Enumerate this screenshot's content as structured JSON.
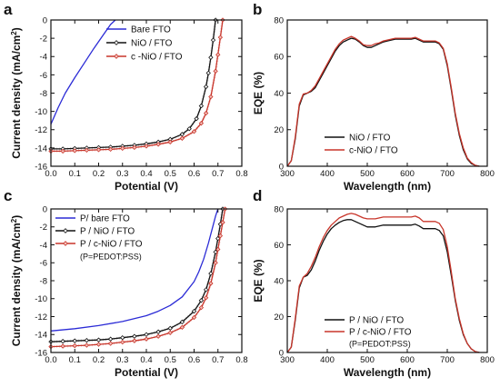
{
  "colors": {
    "black": "#111111",
    "blue": "#2b2bd6",
    "red": "#c8352a",
    "pink_dot": "#e08a8a"
  },
  "chart_data": [
    {
      "panel": "a",
      "type": "line",
      "xlabel": "Potential (V)",
      "ylabel": "Current density (mA/cm2)",
      "ylabel_main": "Current density (mA/cm",
      "ylabel_sup": "2",
      "ylabel_end": ")",
      "xlim": [
        0,
        0.8
      ],
      "ylim": [
        -16,
        0
      ],
      "xticks": [
        0.0,
        0.1,
        0.2,
        0.3,
        0.4,
        0.5,
        0.6,
        0.7,
        0.8
      ],
      "xtick_labels": [
        "0.0",
        "0.1",
        "0.2",
        "0.3",
        "0.4",
        "0.5",
        "0.6",
        "0.7",
        "0.8"
      ],
      "yticks": [
        0,
        -2,
        -4,
        -6,
        -8,
        -10,
        -12,
        -14,
        -16
      ],
      "ytick_labels": [
        "0",
        "-2",
        "-4",
        "-6",
        "-8",
        "-10",
        "-12",
        "-14",
        "-16"
      ],
      "legend_position": "top-left",
      "series": [
        {
          "name": "Bare FTO",
          "color": "#2b2bd6",
          "marker": "none",
          "x": [
            0.0,
            0.03,
            0.06,
            0.1,
            0.14,
            0.18,
            0.22,
            0.25,
            0.27
          ],
          "y": [
            -11.4,
            -9.6,
            -8.0,
            -6.3,
            -4.7,
            -3.1,
            -1.6,
            -0.5,
            0.0
          ]
        },
        {
          "name": "NiO / FTO",
          "color": "#111111",
          "marker": "diamond",
          "x": [
            0.0,
            0.05,
            0.1,
            0.15,
            0.2,
            0.25,
            0.3,
            0.35,
            0.4,
            0.45,
            0.5,
            0.55,
            0.58,
            0.61,
            0.63,
            0.65,
            0.66,
            0.67,
            0.68,
            0.69
          ],
          "y": [
            -14.1,
            -14.1,
            -14.05,
            -14.0,
            -13.95,
            -13.9,
            -13.8,
            -13.7,
            -13.55,
            -13.35,
            -13.05,
            -12.5,
            -11.9,
            -10.8,
            -9.4,
            -7.3,
            -5.8,
            -4.1,
            -2.2,
            0.0
          ]
        },
        {
          "name": "c -NiO / FTO",
          "color": "#c8352a",
          "marker": "diamond",
          "x": [
            0.0,
            0.05,
            0.1,
            0.15,
            0.2,
            0.25,
            0.3,
            0.35,
            0.4,
            0.45,
            0.5,
            0.55,
            0.6,
            0.63,
            0.65,
            0.67,
            0.69,
            0.7,
            0.71,
            0.72
          ],
          "y": [
            -14.35,
            -14.35,
            -14.3,
            -14.25,
            -14.2,
            -14.15,
            -14.05,
            -13.95,
            -13.8,
            -13.6,
            -13.35,
            -12.95,
            -12.2,
            -11.3,
            -10.2,
            -8.4,
            -5.6,
            -3.8,
            -1.9,
            0.0
          ]
        }
      ]
    },
    {
      "panel": "b",
      "type": "line",
      "xlabel": "Wavelength (nm)",
      "ylabel": "EQE (%)",
      "xlim": [
        300,
        800
      ],
      "ylim": [
        0,
        80
      ],
      "xticks": [
        300,
        400,
        500,
        600,
        700,
        800
      ],
      "xtick_labels": [
        "300",
        "400",
        "500",
        "600",
        "700",
        "800"
      ],
      "yticks": [
        0,
        20,
        40,
        60,
        80
      ],
      "ytick_labels": [
        "0",
        "20",
        "40",
        "60",
        "80"
      ],
      "legend_position": "bottom-center",
      "series": [
        {
          "name": "NiO / FTO",
          "color": "#111111",
          "marker": "none",
          "x": [
            300,
            310,
            320,
            330,
            340,
            350,
            360,
            370,
            380,
            390,
            400,
            410,
            420,
            430,
            440,
            450,
            460,
            470,
            480,
            490,
            500,
            510,
            520,
            530,
            540,
            550,
            560,
            570,
            580,
            590,
            600,
            610,
            620,
            630,
            640,
            650,
            660,
            670,
            680,
            690,
            700,
            710,
            720,
            730,
            740,
            750,
            760,
            770,
            780
          ],
          "y": [
            0,
            3,
            15,
            33,
            39,
            40,
            41,
            43,
            47,
            51,
            55,
            59,
            63,
            66,
            68,
            69,
            70,
            69.5,
            68,
            66,
            65,
            65,
            66,
            67,
            68,
            68.5,
            69,
            69.5,
            69.5,
            69.5,
            69.5,
            69.5,
            70,
            69,
            68,
            68,
            68,
            68,
            67,
            64,
            55,
            42,
            28,
            17,
            9,
            4,
            1.5,
            0.5,
            0
          ]
        },
        {
          "name": "c-NiO / FTO",
          "color": "#c8352a",
          "marker": "none",
          "x": [
            300,
            310,
            320,
            330,
            340,
            350,
            360,
            370,
            380,
            390,
            400,
            410,
            420,
            430,
            440,
            450,
            460,
            470,
            480,
            490,
            500,
            510,
            520,
            530,
            540,
            550,
            560,
            570,
            580,
            590,
            600,
            610,
            620,
            630,
            640,
            650,
            660,
            670,
            680,
            690,
            700,
            710,
            720,
            730,
            740,
            750,
            760,
            770,
            780
          ],
          "y": [
            0,
            3,
            16,
            34,
            39.5,
            40,
            41.5,
            44,
            48,
            52,
            56,
            60,
            64,
            67,
            69,
            70,
            71,
            70,
            68.5,
            66.5,
            66,
            66,
            67,
            67.5,
            68.5,
            69,
            69.5,
            70,
            70,
            70,
            70,
            70,
            70.5,
            69.5,
            68.5,
            68.5,
            68.5,
            68.5,
            67.5,
            64.5,
            56,
            43,
            29,
            18,
            10,
            4.5,
            2,
            0.5,
            0
          ]
        }
      ]
    },
    {
      "panel": "c",
      "type": "line",
      "xlabel": "Potential (V)",
      "ylabel": "Current density (mA/cm2)",
      "ylabel_main": "Current density (mA/cm",
      "ylabel_sup": "2",
      "ylabel_end": ")",
      "xlim": [
        0,
        0.8
      ],
      "ylim": [
        -16,
        0
      ],
      "xticks": [
        0.0,
        0.1,
        0.2,
        0.3,
        0.4,
        0.5,
        0.6,
        0.7,
        0.8
      ],
      "xtick_labels": [
        "0.0",
        "0.1",
        "0.2",
        "0.3",
        "0.4",
        "0.5",
        "0.6",
        "0.7",
        "0.8"
      ],
      "yticks": [
        0,
        -2,
        -4,
        -6,
        -8,
        -10,
        -12,
        -14,
        -16
      ],
      "ytick_labels": [
        "0",
        "-2",
        "-4",
        "-6",
        "-8",
        "-10",
        "-12",
        "-14",
        "-16"
      ],
      "legend_position": "top-left",
      "legend_note": "(P=PEDOT:PSS)",
      "series": [
        {
          "name": "P/ bare FTO",
          "color": "#2b2bd6",
          "marker": "none",
          "x": [
            0.0,
            0.1,
            0.2,
            0.3,
            0.4,
            0.45,
            0.5,
            0.55,
            0.6,
            0.62,
            0.64,
            0.66,
            0.68,
            0.69,
            0.7
          ],
          "y": [
            -13.6,
            -13.35,
            -13.0,
            -12.55,
            -11.9,
            -11.4,
            -10.75,
            -9.8,
            -8.1,
            -7.0,
            -5.6,
            -3.8,
            -1.8,
            -0.8,
            0.0
          ]
        },
        {
          "name": "P / NiO / FTO",
          "color": "#111111",
          "marker": "diamond",
          "x": [
            0.0,
            0.05,
            0.1,
            0.15,
            0.2,
            0.25,
            0.3,
            0.35,
            0.4,
            0.45,
            0.5,
            0.55,
            0.6,
            0.63,
            0.65,
            0.67,
            0.69,
            0.7,
            0.71,
            0.72
          ],
          "y": [
            -14.8,
            -14.75,
            -14.7,
            -14.65,
            -14.6,
            -14.5,
            -14.35,
            -14.2,
            -14.0,
            -13.7,
            -13.3,
            -12.6,
            -11.4,
            -10.2,
            -9.0,
            -7.2,
            -4.8,
            -3.3,
            -1.7,
            0.0
          ]
        },
        {
          "name": "P / c-NiO / FTO",
          "color": "#c8352a",
          "marker": "diamond",
          "x": [
            0.0,
            0.05,
            0.1,
            0.15,
            0.2,
            0.25,
            0.3,
            0.35,
            0.4,
            0.45,
            0.5,
            0.55,
            0.6,
            0.63,
            0.65,
            0.67,
            0.69,
            0.7,
            0.71,
            0.72,
            0.73
          ],
          "y": [
            -15.35,
            -15.3,
            -15.25,
            -15.2,
            -15.1,
            -15.0,
            -14.85,
            -14.7,
            -14.5,
            -14.2,
            -13.8,
            -13.2,
            -12.1,
            -11.0,
            -9.9,
            -8.3,
            -6.0,
            -4.5,
            -3.0,
            -1.5,
            0.0
          ]
        }
      ]
    },
    {
      "panel": "d",
      "type": "line",
      "xlabel": "Wavelength (nm)",
      "ylabel": "EQE (%)",
      "xlim": [
        300,
        800
      ],
      "ylim": [
        0,
        80
      ],
      "xticks": [
        300,
        400,
        500,
        600,
        700,
        800
      ],
      "xtick_labels": [
        "300",
        "400",
        "500",
        "600",
        "700",
        "800"
      ],
      "yticks": [
        0,
        20,
        40,
        60,
        80
      ],
      "ytick_labels": [
        "0",
        "20",
        "40",
        "60",
        "80"
      ],
      "legend_position": "bottom-center",
      "legend_note": "(P=PEDOT:PSS)",
      "series": [
        {
          "name": "P / NiO / FTO",
          "color": "#111111",
          "marker": "none",
          "x": [
            300,
            310,
            320,
            330,
            340,
            350,
            360,
            370,
            380,
            390,
            400,
            410,
            420,
            430,
            440,
            450,
            460,
            470,
            480,
            490,
            500,
            510,
            520,
            530,
            540,
            550,
            560,
            570,
            580,
            590,
            600,
            610,
            620,
            630,
            640,
            650,
            660,
            670,
            680,
            690,
            700,
            710,
            720,
            730,
            740,
            750,
            760,
            770,
            780
          ],
          "y": [
            0,
            3,
            18,
            36,
            42,
            43,
            46,
            51,
            57,
            62,
            66,
            69,
            71,
            72.5,
            73.5,
            74,
            74,
            73,
            72,
            71,
            70,
            70,
            70,
            70.5,
            71,
            71,
            71,
            71,
            71,
            71,
            71,
            71,
            71.5,
            70.5,
            69,
            69,
            69,
            69,
            68,
            65,
            56,
            43,
            29,
            18,
            10,
            5,
            2,
            0.5,
            0
          ]
        },
        {
          "name": "P / c-NiO / FTO",
          "color": "#c8352a",
          "marker": "none",
          "x": [
            300,
            310,
            320,
            330,
            340,
            350,
            360,
            370,
            380,
            390,
            400,
            410,
            420,
            430,
            440,
            450,
            460,
            470,
            480,
            490,
            500,
            510,
            520,
            530,
            540,
            550,
            560,
            570,
            580,
            590,
            600,
            610,
            620,
            630,
            640,
            650,
            660,
            670,
            680,
            690,
            700,
            710,
            720,
            730,
            740,
            750,
            760,
            770,
            780
          ],
          "y": [
            0,
            3,
            19,
            37,
            42,
            44,
            48,
            53,
            59,
            64,
            68,
            71,
            73,
            75,
            76,
            77,
            77.5,
            77,
            76,
            75,
            74.5,
            74.5,
            74.5,
            75,
            75.5,
            75.5,
            75.5,
            75.5,
            75.5,
            75.5,
            75.5,
            75.5,
            76,
            75,
            73,
            73,
            73,
            73,
            72,
            68.5,
            59,
            45,
            30,
            19,
            10.5,
            5,
            2,
            0.5,
            0
          ]
        }
      ]
    }
  ]
}
